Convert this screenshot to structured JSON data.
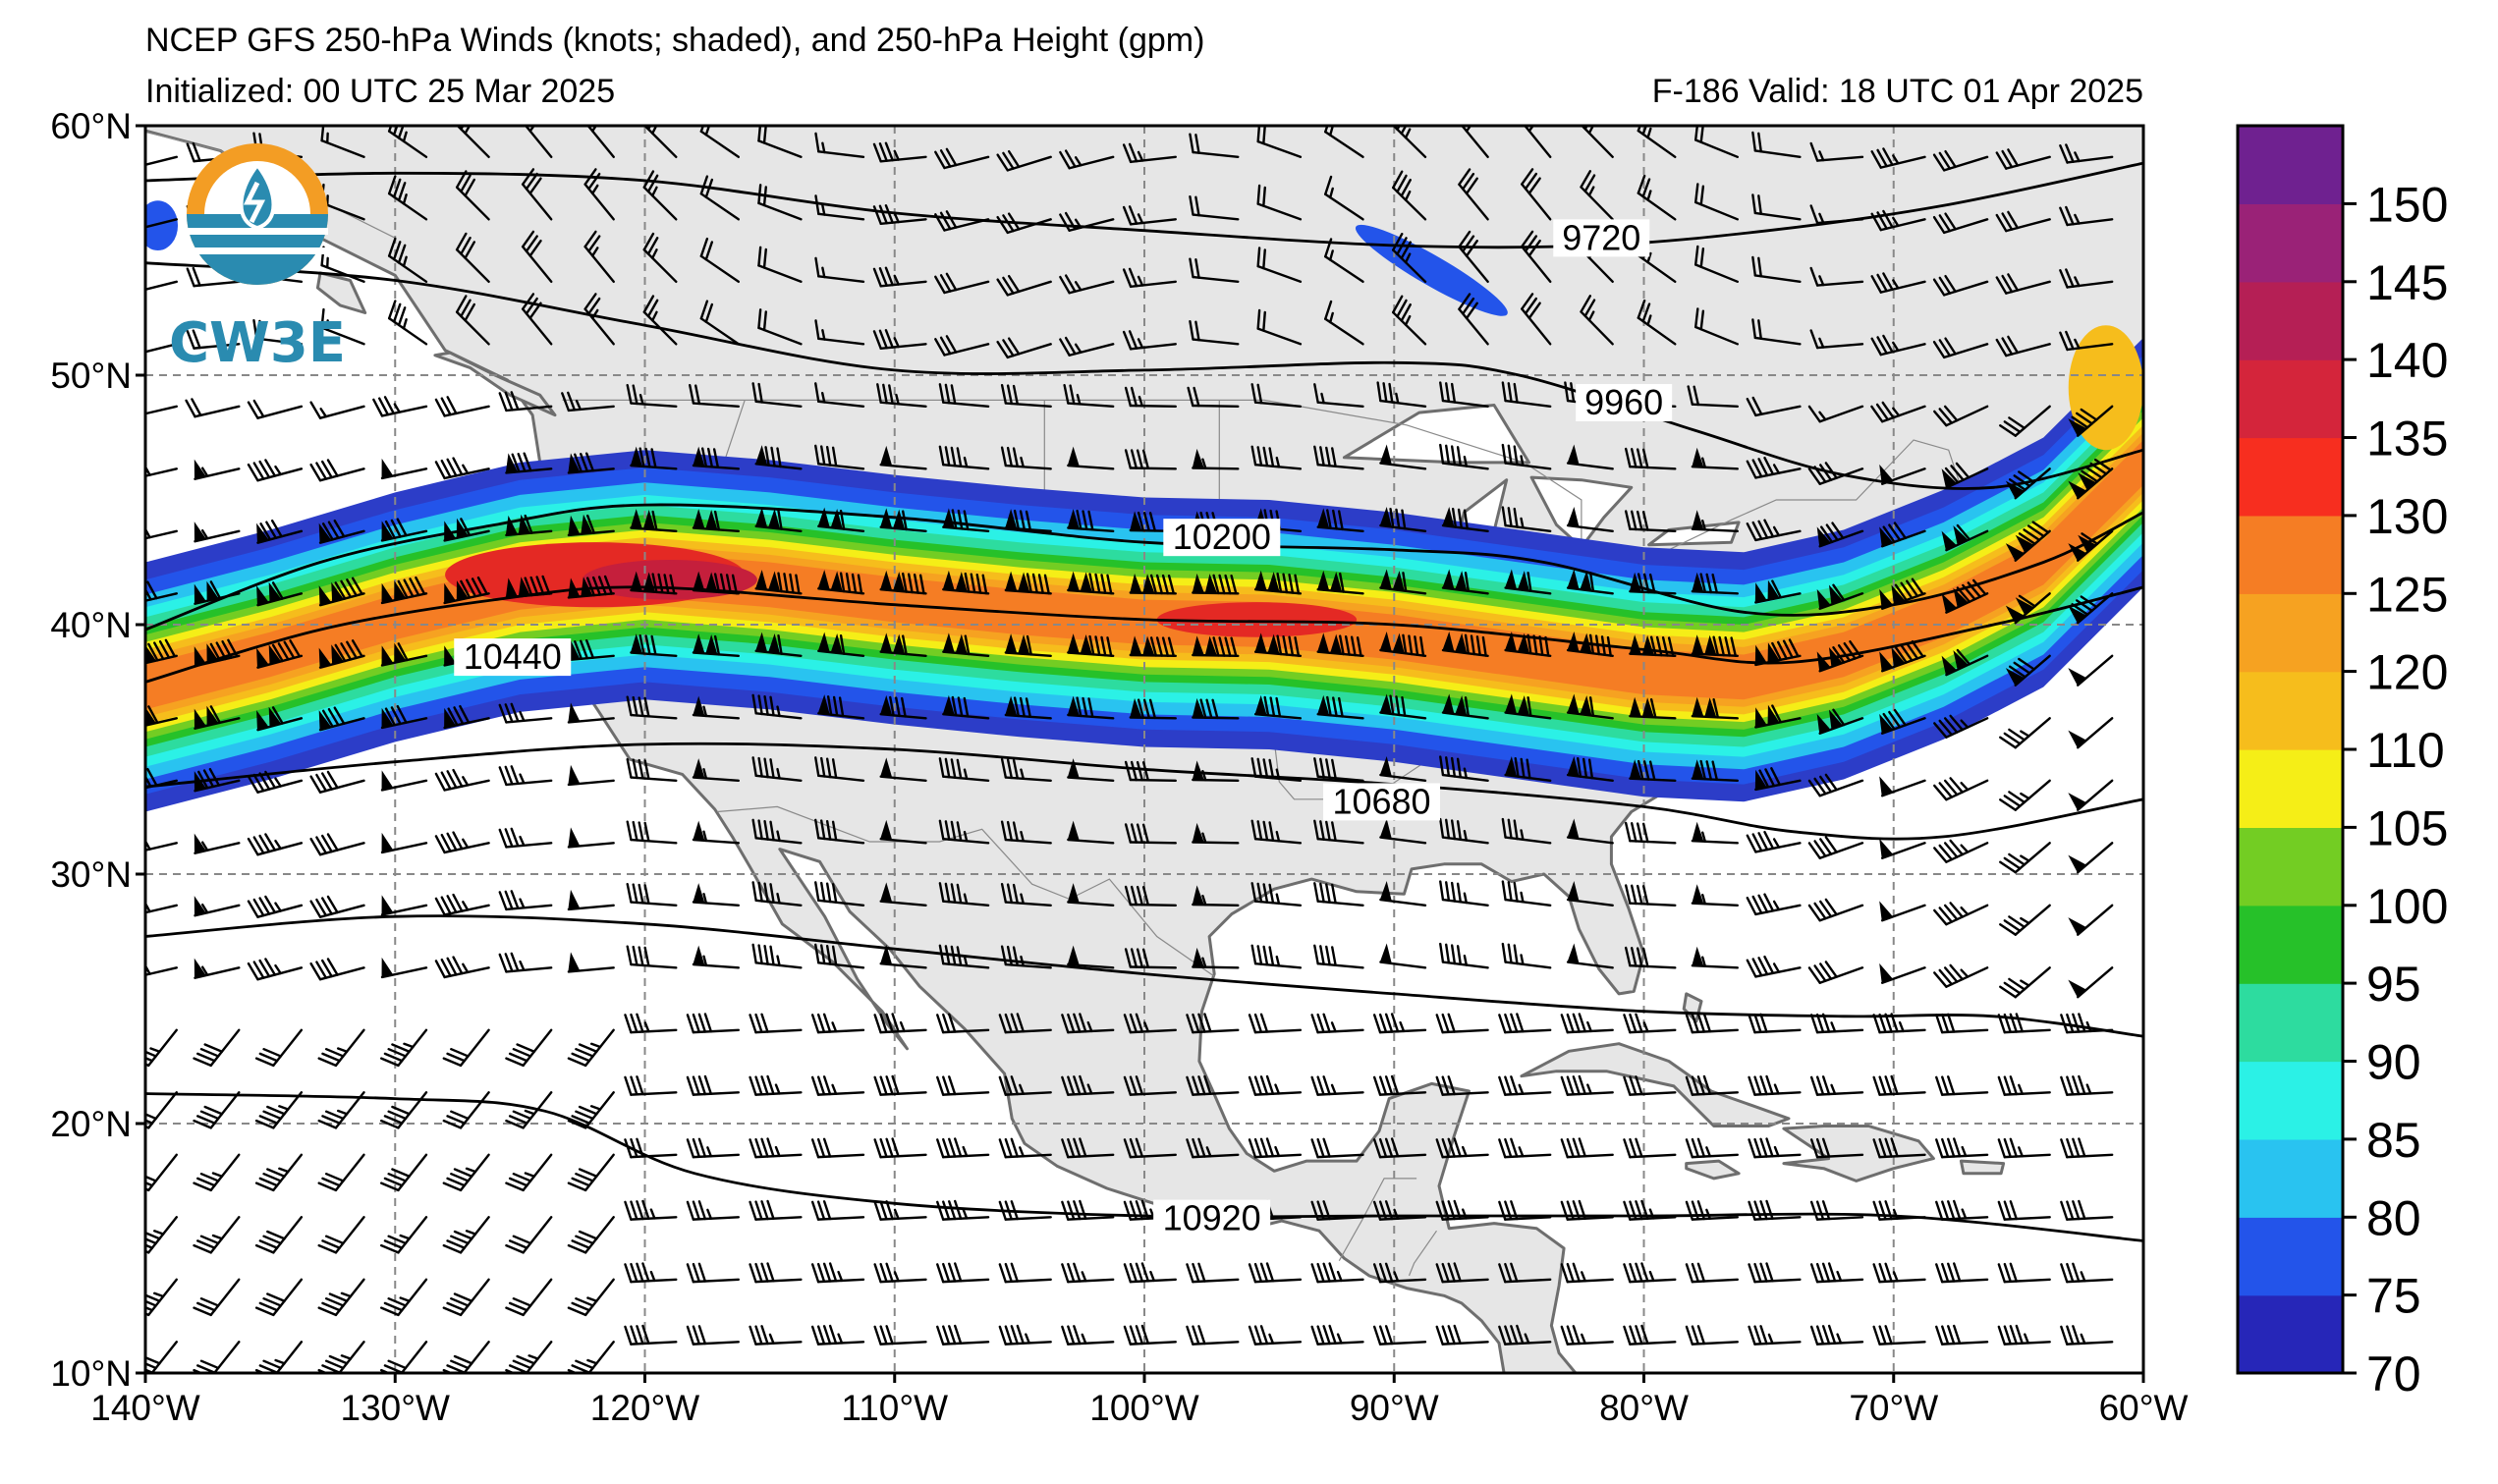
{
  "header": {
    "title": "NCEP GFS 250-hPa Winds (knots; shaded), and 250-hPa Height (gpm)",
    "initialized": "Initialized: 00 UTC 25 Mar 2025",
    "valid": "F-186  Valid: 18 UTC 01 Apr 2025"
  },
  "logo": {
    "text": "CW3E"
  },
  "map": {
    "lon_range": [
      -140,
      -60
    ],
    "lat_range": [
      10,
      60
    ],
    "lon_ticks": [
      {
        "lon": -140,
        "label": "140°W"
      },
      {
        "lon": -130,
        "label": "130°W"
      },
      {
        "lon": -120,
        "label": "120°W"
      },
      {
        "lon": -110,
        "label": "110°W"
      },
      {
        "lon": -100,
        "label": "100°W"
      },
      {
        "lon": -90,
        "label": "90°W"
      },
      {
        "lon": -80,
        "label": "80°W"
      },
      {
        "lon": -70,
        "label": "70°W"
      },
      {
        "lon": -60,
        "label": "60°W"
      }
    ],
    "lat_ticks": [
      {
        "lat": 60,
        "label": "60°N"
      },
      {
        "lat": 50,
        "label": "50°N"
      },
      {
        "lat": 40,
        "label": "40°N"
      },
      {
        "lat": 30,
        "label": "30°N"
      },
      {
        "lat": 20,
        "label": "20°N"
      },
      {
        "lat": 10,
        "label": "10°N"
      }
    ],
    "grid": "dashed",
    "land_color": "#e6e6e6",
    "coast_color": "#6e6e6e"
  },
  "height_contours": [
    {
      "label": "9720",
      "label_at": [
        -81.7,
        55.3
      ],
      "points": [
        [
          -140,
          57.8
        ],
        [
          -130,
          58.1
        ],
        [
          -120,
          57.8
        ],
        [
          -110,
          56.5
        ],
        [
          -100,
          55.8
        ],
        [
          -90,
          55.2
        ],
        [
          -82,
          55.2
        ],
        [
          -75,
          55.8
        ],
        [
          -68,
          56.8
        ],
        [
          -60,
          58.5
        ]
      ]
    },
    {
      "label": "9960",
      "label_at": [
        -80.8,
        48.7
      ],
      "points": [
        [
          -140,
          54.5
        ],
        [
          -130,
          53.8
        ],
        [
          -120,
          52.0
        ],
        [
          -110,
          50.2
        ],
        [
          -100,
          50.2
        ],
        [
          -90,
          50.5
        ],
        [
          -85,
          50.0
        ],
        [
          -78,
          47.8
        ],
        [
          -72,
          46.0
        ],
        [
          -66,
          45.5
        ],
        [
          -60,
          47.0
        ]
      ]
    },
    {
      "label": "10200",
      "label_at": [
        -96.9,
        43.3
      ],
      "points": [
        [
          -140,
          39.8
        ],
        [
          -133,
          42.5
        ],
        [
          -126,
          44.0
        ],
        [
          -120,
          44.8
        ],
        [
          -110,
          44.3
        ],
        [
          -100,
          43.3
        ],
        [
          -90,
          43.0
        ],
        [
          -84,
          42.5
        ],
        [
          -76,
          40.5
        ],
        [
          -70,
          40.8
        ],
        [
          -64,
          42.5
        ],
        [
          -60,
          44.5
        ]
      ]
    },
    {
      "label": "10440",
      "label_at": [
        -125.3,
        38.5
      ],
      "points": [
        [
          -140,
          37.7
        ],
        [
          -133,
          39.8
        ],
        [
          -126,
          41.0
        ],
        [
          -120,
          41.5
        ],
        [
          -110,
          40.8
        ],
        [
          -100,
          40.2
        ],
        [
          -90,
          40.0
        ],
        [
          -80,
          39.0
        ],
        [
          -74,
          38.5
        ],
        [
          -66,
          40.0
        ],
        [
          -60,
          41.5
        ]
      ]
    },
    {
      "label": "10680",
      "label_at": [
        -90.5,
        32.7
      ],
      "points": [
        [
          -140,
          33.5
        ],
        [
          -130,
          34.5
        ],
        [
          -120,
          35.2
        ],
        [
          -110,
          35.0
        ],
        [
          -100,
          34.2
        ],
        [
          -90,
          33.6
        ],
        [
          -80,
          32.7
        ],
        [
          -74,
          31.7
        ],
        [
          -68,
          31.5
        ],
        [
          -60,
          33.0
        ]
      ]
    },
    {
      "label": "",
      "label_at": null,
      "points": [
        [
          -140,
          27.5
        ],
        [
          -130,
          28.3
        ],
        [
          -120,
          28.0
        ],
        [
          -110,
          27.0
        ],
        [
          -100,
          26.0
        ],
        [
          -90,
          25.2
        ],
        [
          -80,
          24.5
        ],
        [
          -72,
          24.3
        ],
        [
          -66,
          24.3
        ],
        [
          -60,
          23.5
        ]
      ]
    },
    {
      "label": "10920",
      "label_at": [
        -97.3,
        16.0
      ],
      "points": [
        [
          -140,
          21.2
        ],
        [
          -130,
          21.0
        ],
        [
          -124,
          20.5
        ],
        [
          -118,
          18.0
        ],
        [
          -110,
          16.8
        ],
        [
          -100,
          16.3
        ],
        [
          -90,
          16.3
        ],
        [
          -80,
          16.3
        ],
        [
          -70,
          16.3
        ],
        [
          -60,
          15.3
        ]
      ]
    }
  ],
  "jet_core": [
    [
      -140,
      37.5
    ],
    [
      -135,
      38.8
    ],
    [
      -130,
      40.3
    ],
    [
      -125,
      41.5
    ],
    [
      -120,
      42.0
    ],
    [
      -115,
      41.6
    ],
    [
      -110,
      41.0
    ],
    [
      -105,
      40.5
    ],
    [
      -100,
      40.1
    ],
    [
      -95,
      40.0
    ],
    [
      -90,
      39.5
    ],
    [
      -85,
      38.8
    ],
    [
      -80,
      38.1
    ],
    [
      -76,
      37.9
    ],
    [
      -72,
      38.8
    ],
    [
      -68,
      40.4
    ],
    [
      -64,
      42.5
    ],
    [
      -60,
      46.5
    ]
  ],
  "jet_bands": [
    {
      "knots": 70,
      "color": "#2c3dc8",
      "halfwidth": 5.0
    },
    {
      "knots": 75,
      "color": "#2354ea",
      "halfwidth": 4.3
    },
    {
      "knots": 80,
      "color": "#29c3f0",
      "halfwidth": 3.7
    },
    {
      "knots": 85,
      "color": "#2bf1e6",
      "halfwidth": 3.2
    },
    {
      "knots": 90,
      "color": "#2ddc9f",
      "halfwidth": 2.8
    },
    {
      "knots": 95,
      "color": "#26c129",
      "halfwidth": 2.4
    },
    {
      "knots": 100,
      "color": "#73cd23",
      "halfwidth": 2.1
    },
    {
      "knots": 105,
      "color": "#f5ee17",
      "halfwidth": 1.8
    },
    {
      "knots": 110,
      "color": "#f6bd1c",
      "halfwidth": 1.5
    },
    {
      "knots": 120,
      "color": "#f6a221",
      "halfwidth": 1.2
    },
    {
      "knots": 125,
      "color": "#f57d24",
      "halfwidth": 0.9
    }
  ],
  "jet_maxima": [
    {
      "center": [
        -122,
        42.0
      ],
      "radius": [
        6.0,
        1.3
      ],
      "color": "#e42924"
    },
    {
      "center": [
        -119,
        41.8
      ],
      "radius": [
        3.5,
        0.8
      ],
      "color": "#c51f3c"
    },
    {
      "center": [
        -95.5,
        40.2
      ],
      "radius": [
        4.0,
        0.7
      ],
      "color": "#e42924"
    },
    {
      "center": [
        -61.5,
        49.5
      ],
      "radius": [
        1.5,
        2.5
      ],
      "color": "#f6bd1c"
    }
  ],
  "isolated_blobs": [
    {
      "center": [
        -88.5,
        54.2
      ],
      "radius": [
        3.5,
        0.6
      ],
      "rotation": 30,
      "color": "#2354ea"
    },
    {
      "center": [
        -139.5,
        56.0
      ],
      "radius": [
        0.8,
        1.0
      ],
      "rotation": 0,
      "color": "#2354ea"
    }
  ],
  "colorbar": {
    "levels": [
      70,
      75,
      80,
      85,
      90,
      95,
      100,
      105,
      110,
      120,
      125,
      130,
      135,
      140,
      145,
      150
    ],
    "labels": [
      "70",
      "75",
      "80",
      "85",
      "90",
      "95",
      "100",
      "105",
      "110",
      "120",
      "125",
      "130",
      "135",
      "140",
      "145",
      "150"
    ],
    "colors": [
      "#2626b8",
      "#2354ea",
      "#29c3f0",
      "#2bf1e6",
      "#2ddc9f",
      "#26c129",
      "#73cd23",
      "#f5ee17",
      "#f6bd1c",
      "#f6a221",
      "#f57d24",
      "#f72e1f",
      "#d4253b",
      "#b51f55",
      "#9a2277",
      "#6f2190"
    ]
  },
  "barb_grid": {
    "lon_step": 2.5,
    "lat_step": 2.5
  }
}
